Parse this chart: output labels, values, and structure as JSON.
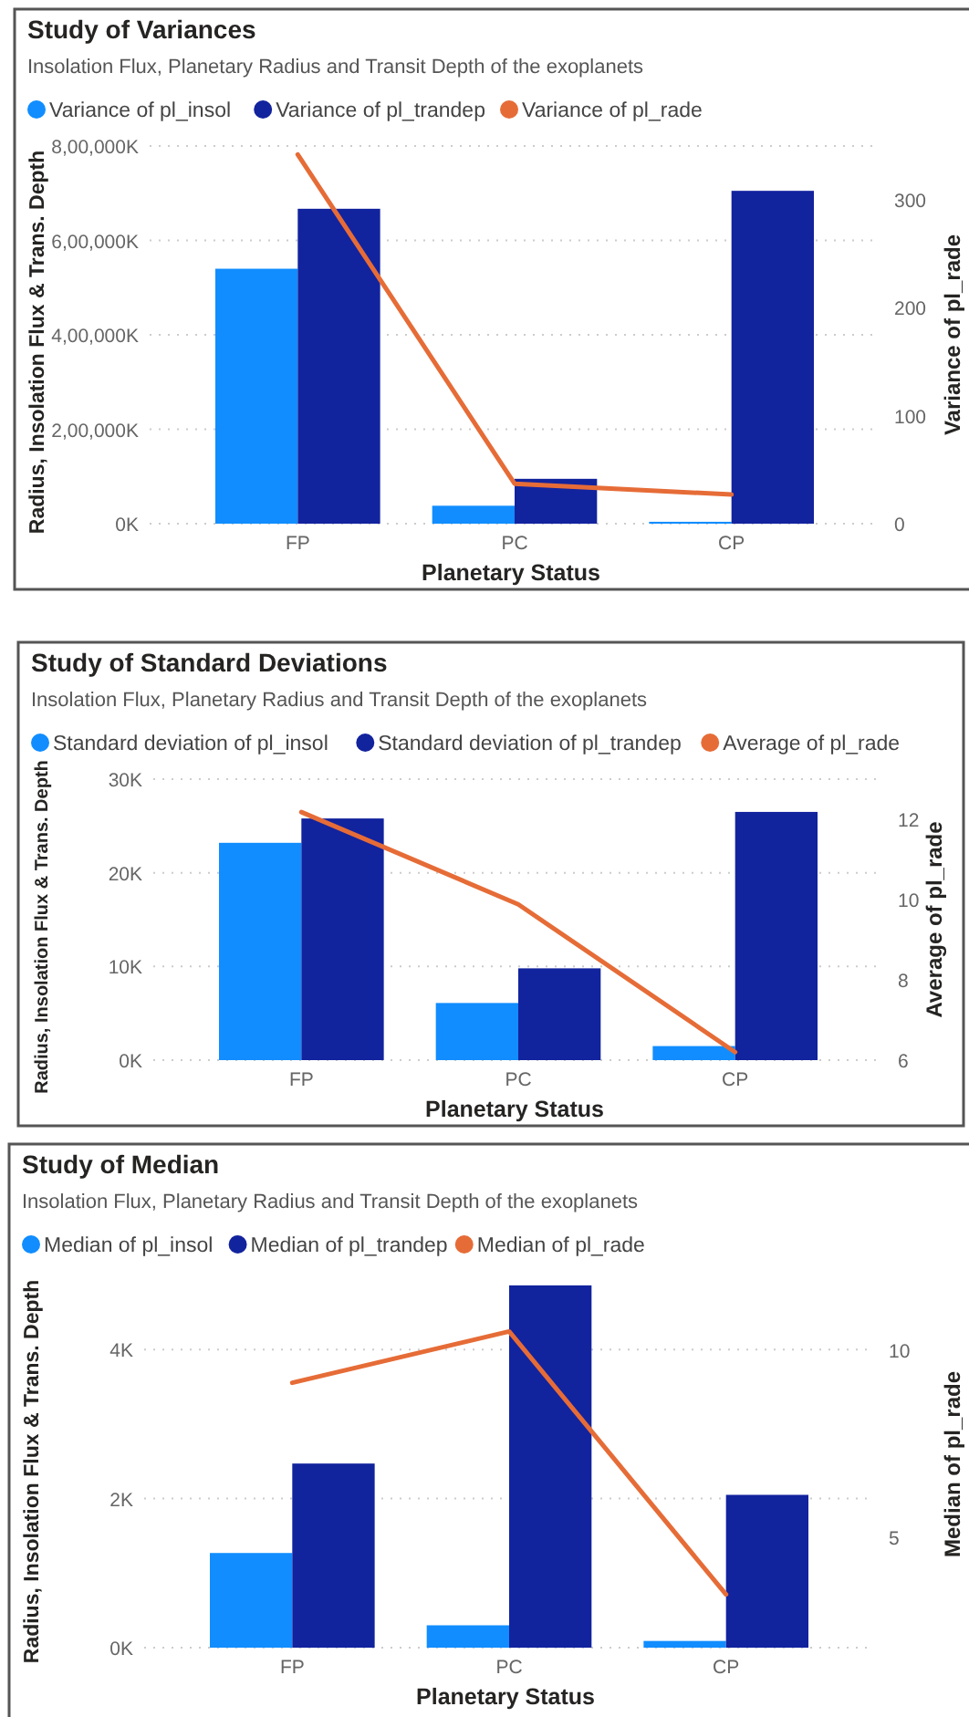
{
  "chart_data": [
    {
      "type": "bar",
      "title": "Study of Variances",
      "subtitle": "Insolation Flux, Planetary Radius  and Transit Depth of the exoplanets",
      "xlabel": "Planetary Status",
      "ylabel": "Radius, Insolation Flux & Trans. Depth",
      "y2label": "Variance of pl_rade",
      "categories": [
        "FP",
        "PC",
        "CP"
      ],
      "series": [
        {
          "name": "Variance of pl_insol",
          "color": "#118dff",
          "values": [
            540000000,
            38000000,
            4000000
          ]
        },
        {
          "name": "Variance of pl_trandep",
          "color": "#12239e",
          "values": [
            667000000,
            95000000,
            705000000
          ]
        },
        {
          "name": "Variance of pl_rade",
          "type": "line",
          "axis": "y2",
          "color": "#e66c37",
          "values": [
            342,
            37,
            27
          ]
        }
      ],
      "ylim": [
        0,
        800000000
      ],
      "yticks": [
        {
          "value": 0,
          "label": "0K"
        },
        {
          "value": 200000000,
          "label": "2,00,000K"
        },
        {
          "value": 400000000,
          "label": "4,00,000K"
        },
        {
          "value": 600000000,
          "label": "6,00,000K"
        },
        {
          "value": 800000000,
          "label": "8,00,000K"
        }
      ],
      "y2lim": [
        0,
        350
      ],
      "y2ticks": [
        0,
        100,
        200,
        300
      ],
      "grid": "y",
      "legend": "top left"
    },
    {
      "type": "bar",
      "title": "Study of Standard Deviations",
      "subtitle": "Insolation Flux, Planetary Radius  and Transit Depth of the exoplanets",
      "xlabel": "Planetary Status",
      "ylabel": "Radius, Insolation Flux & Trans. Depth",
      "y2label": "Average of pl_rade",
      "categories": [
        "FP",
        "PC",
        "CP"
      ],
      "series": [
        {
          "name": "Standard deviation of pl_insol",
          "color": "#118dff",
          "values": [
            23200,
            6100,
            1500
          ]
        },
        {
          "name": "Standard deviation of pl_trandep",
          "color": "#12239e",
          "values": [
            25800,
            9800,
            26500
          ]
        },
        {
          "name": "Average of pl_rade",
          "type": "line",
          "axis": "y2",
          "color": "#e66c37",
          "values": [
            12.18,
            9.88,
            6.2
          ]
        }
      ],
      "ylim": [
        0,
        30000
      ],
      "yticks": [
        {
          "value": 0,
          "label": "0K"
        },
        {
          "value": 10000,
          "label": "10K"
        },
        {
          "value": 20000,
          "label": "20K"
        },
        {
          "value": 30000,
          "label": "30K"
        }
      ],
      "y2lim": [
        6,
        13
      ],
      "y2ticks": [
        6,
        8,
        10,
        12
      ],
      "grid": "y",
      "legend": "top left"
    },
    {
      "type": "bar",
      "title": "Study of Median",
      "subtitle": "Insolation Flux, Planetary Radius  and Transit Depth of the exoplanets",
      "xlabel": "Planetary Status",
      "ylabel": "Radius, Insolation Flux & Trans. Depth",
      "y2label": "Median of pl_rade",
      "categories": [
        "FP",
        "PC",
        "CP"
      ],
      "series": [
        {
          "name": "Median of pl_insol",
          "color": "#118dff",
          "values": [
            1270,
            300,
            90
          ]
        },
        {
          "name": "Median of pl_trandep",
          "color": "#12239e",
          "values": [
            2470,
            4860,
            2050
          ]
        },
        {
          "name": "Median of pl_rade",
          "type": "line",
          "axis": "y2",
          "color": "#e66c37",
          "values": [
            9.12,
            10.49,
            3.47
          ]
        }
      ],
      "ylim": [
        0,
        4920
      ],
      "yticks": [
        {
          "value": 0,
          "label": "0K"
        },
        {
          "value": 2000,
          "label": "2K"
        },
        {
          "value": 4000,
          "label": "4K"
        }
      ],
      "y2lim": [
        2.05,
        11.84
      ],
      "y2ticks": [
        5,
        10
      ],
      "grid": "y",
      "legend": "top left"
    }
  ]
}
